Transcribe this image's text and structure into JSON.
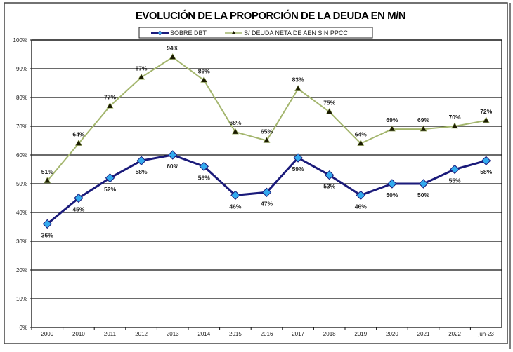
{
  "chart_data": {
    "type": "line",
    "title": "EVOLUCIÓN DE LA PROPORCIÓN DE LA DEUDA EN M/N",
    "xlabel": "",
    "ylabel": "",
    "categories": [
      "2009",
      "2010",
      "2011",
      "2012",
      "2013",
      "2014",
      "2015",
      "2016",
      "2017",
      "2018",
      "2019",
      "2020",
      "2021",
      "2022",
      "jun-23"
    ],
    "ylim": [
      0,
      100
    ],
    "yticks": [
      0,
      10,
      20,
      30,
      40,
      50,
      60,
      70,
      80,
      90,
      100
    ],
    "ytick_labels": [
      "0%",
      "10%",
      "20%",
      "30%",
      "40%",
      "50%",
      "60%",
      "70%",
      "80%",
      "90%",
      "100%"
    ],
    "grid": true,
    "legend_position": "top-center",
    "series": [
      {
        "name": "SOBRE DBT",
        "color": "#1a1a7a",
        "marker": "diamond",
        "marker_color": "#33aaee",
        "values": [
          36,
          45,
          52,
          58,
          60,
          56,
          46,
          47,
          59,
          53,
          46,
          50,
          50,
          55,
          58
        ],
        "labels": [
          "36%",
          "45%",
          "52%",
          "58%",
          "60%",
          "56%",
          "46%",
          "47%",
          "59%",
          "53%",
          "46%",
          "50%",
          "50%",
          "55%",
          "58%"
        ]
      },
      {
        "name": "S/ DEUDA NETA DE AEN SIN PPCC",
        "color": "#a4b66e",
        "marker": "triangle",
        "marker_color": "#1a1a00",
        "values": [
          51,
          64,
          77,
          87,
          94,
          86,
          68,
          65,
          83,
          75,
          64,
          69,
          69,
          70,
          72
        ],
        "labels": [
          "51%",
          "64%",
          "77%",
          "87%",
          "94%",
          "86%",
          "68%",
          "65%",
          "83%",
          "75%",
          "64%",
          "69%",
          "69%",
          "70%",
          "72%"
        ]
      }
    ]
  }
}
